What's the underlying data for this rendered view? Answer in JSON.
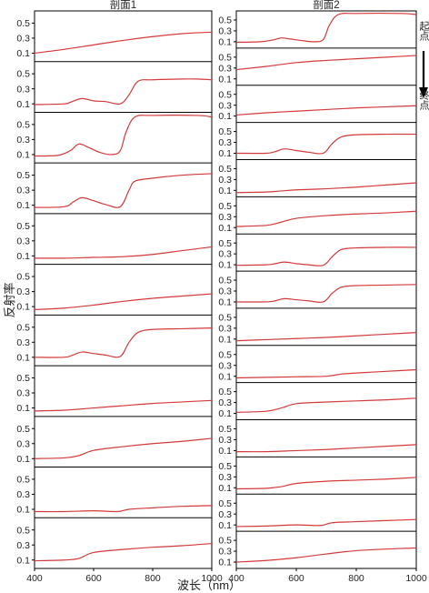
{
  "chart_data": {
    "type": "line",
    "xlabel": "波长（nm）",
    "ylabel": "反射率",
    "xlim": [
      400,
      1000
    ],
    "x_ticks": [
      400,
      600,
      800,
      1000
    ],
    "line_color": "#d23a3a",
    "side_labels": {
      "start": "起点",
      "end": "终点"
    },
    "panels": [
      {
        "title": "剖面1",
        "y_ticks": [
          "0.5",
          "0.3",
          "0.1"
        ],
        "ylim": [
          0,
          0.65
        ],
        "series": [
          {
            "x": [
              400,
              500,
              600,
              700,
              800,
              900,
              1000
            ],
            "y": [
              0.1,
              0.15,
              0.21,
              0.27,
              0.32,
              0.36,
              0.38
            ]
          },
          {
            "x": [
              400,
              500,
              520,
              560,
              600,
              640,
              690,
              720,
              750,
              800,
              900,
              950,
              1000
            ],
            "y": [
              0.09,
              0.1,
              0.12,
              0.17,
              0.14,
              0.13,
              0.1,
              0.22,
              0.4,
              0.42,
              0.43,
              0.43,
              0.42
            ]
          },
          {
            "x": [
              400,
              480,
              520,
              550,
              580,
              620,
              660,
              690,
              710,
              740,
              800,
              950,
              1000
            ],
            "y": [
              0.08,
              0.09,
              0.15,
              0.24,
              0.2,
              0.13,
              0.1,
              0.15,
              0.4,
              0.6,
              0.62,
              0.62,
              0.6
            ]
          },
          {
            "x": [
              400,
              500,
              530,
              560,
              600,
              640,
              690,
              720,
              740,
              800,
              900,
              1000
            ],
            "y": [
              0.07,
              0.08,
              0.14,
              0.2,
              0.16,
              0.11,
              0.08,
              0.3,
              0.42,
              0.46,
              0.5,
              0.52
            ]
          },
          {
            "x": [
              400,
              500,
              600,
              700,
              800,
              900,
              1000
            ],
            "y": [
              0.07,
              0.07,
              0.08,
              0.09,
              0.12,
              0.17,
              0.22
            ]
          },
          {
            "x": [
              400,
              500,
              600,
              700,
              800,
              900,
              1000
            ],
            "y": [
              0.06,
              0.08,
              0.12,
              0.17,
              0.21,
              0.24,
              0.27
            ]
          },
          {
            "x": [
              400,
              500,
              530,
              560,
              600,
              640,
              690,
              720,
              750,
              800,
              900,
              1000
            ],
            "y": [
              0.1,
              0.1,
              0.13,
              0.17,
              0.15,
              0.13,
              0.11,
              0.3,
              0.43,
              0.47,
              0.48,
              0.49
            ]
          },
          {
            "x": [
              400,
              500,
              600,
              700,
              800,
              900,
              1000
            ],
            "y": [
              0.06,
              0.07,
              0.1,
              0.13,
              0.16,
              0.18,
              0.2
            ]
          },
          {
            "x": [
              400,
              500,
              550,
              600,
              700,
              800,
              900,
              1000
            ],
            "y": [
              0.1,
              0.11,
              0.14,
              0.21,
              0.26,
              0.3,
              0.33,
              0.37
            ]
          },
          {
            "x": [
              400,
              500,
              600,
              680,
              720,
              800,
              900,
              1000
            ],
            "y": [
              0.07,
              0.07,
              0.08,
              0.07,
              0.1,
              0.12,
              0.14,
              0.15
            ]
          },
          {
            "x": [
              400,
              500,
              550,
              600,
              700,
              800,
              900,
              1000
            ],
            "y": [
              0.09,
              0.1,
              0.12,
              0.2,
              0.24,
              0.27,
              0.29,
              0.32
            ]
          }
        ]
      },
      {
        "title": "剖面2",
        "y_ticks": [
          "0.5",
          "0.3",
          "0.1"
        ],
        "ylim": [
          0,
          0.65
        ],
        "series": [
          {
            "x": [
              400,
              480,
              520,
              550,
              580,
              620,
              660,
              690,
              710,
              740,
              800,
              950,
              1000
            ],
            "y": [
              0.09,
              0.1,
              0.13,
              0.17,
              0.15,
              0.12,
              0.1,
              0.14,
              0.4,
              0.6,
              0.62,
              0.62,
              0.6
            ]
          },
          {
            "x": [
              400,
              500,
              600,
              700,
              800,
              900,
              1000
            ],
            "y": [
              0.27,
              0.33,
              0.4,
              0.44,
              0.47,
              0.5,
              0.53
            ]
          },
          {
            "x": [
              400,
              500,
              600,
              700,
              800,
              900,
              1000
            ],
            "y": [
              0.12,
              0.16,
              0.19,
              0.22,
              0.25,
              0.27,
              0.29
            ]
          },
          {
            "x": [
              400,
              500,
              530,
              560,
              600,
              640,
              690,
              720,
              750,
              800,
              900,
              1000
            ],
            "y": [
              0.1,
              0.1,
              0.13,
              0.18,
              0.15,
              0.12,
              0.1,
              0.28,
              0.4,
              0.44,
              0.45,
              0.45
            ]
          },
          {
            "x": [
              400,
              500,
              550,
              600,
              700,
              800,
              900,
              1000
            ],
            "y": [
              0.06,
              0.07,
              0.09,
              0.11,
              0.13,
              0.16,
              0.2,
              0.24
            ]
          },
          {
            "x": [
              400,
              500,
              550,
              600,
              700,
              800,
              900,
              1000
            ],
            "y": [
              0.12,
              0.14,
              0.2,
              0.27,
              0.32,
              0.35,
              0.37,
              0.4
            ]
          },
          {
            "x": [
              400,
              500,
              530,
              560,
              600,
              640,
              690,
              720,
              750,
              800,
              900,
              1000
            ],
            "y": [
              0.09,
              0.1,
              0.12,
              0.15,
              0.12,
              0.1,
              0.09,
              0.25,
              0.38,
              0.41,
              0.42,
              0.42
            ]
          },
          {
            "x": [
              400,
              500,
              530,
              560,
              600,
              640,
              690,
              720,
              750,
              800,
              900,
              1000
            ],
            "y": [
              0.1,
              0.1,
              0.12,
              0.16,
              0.14,
              0.12,
              0.1,
              0.26,
              0.37,
              0.4,
              0.41,
              0.42
            ]
          },
          {
            "x": [
              400,
              500,
              600,
              700,
              800,
              900,
              1000
            ],
            "y": [
              0.07,
              0.09,
              0.11,
              0.13,
              0.16,
              0.19,
              0.22
            ]
          },
          {
            "x": [
              400,
              500,
              600,
              700,
              750,
              800,
              900,
              1000
            ],
            "y": [
              0.07,
              0.08,
              0.09,
              0.1,
              0.14,
              0.16,
              0.19,
              0.22
            ]
          },
          {
            "x": [
              400,
              500,
              550,
              600,
              700,
              800,
              900,
              1000
            ],
            "y": [
              0.12,
              0.14,
              0.2,
              0.28,
              0.31,
              0.33,
              0.35,
              0.38
            ]
          },
          {
            "x": [
              400,
              500,
              600,
              700,
              800,
              900,
              1000
            ],
            "y": [
              0.08,
              0.08,
              0.1,
              0.12,
              0.15,
              0.18,
              0.21
            ]
          },
          {
            "x": [
              400,
              500,
              550,
              600,
              700,
              800,
              900,
              1000
            ],
            "y": [
              0.08,
              0.09,
              0.12,
              0.18,
              0.22,
              0.24,
              0.26,
              0.29
            ]
          },
          {
            "x": [
              400,
              500,
              600,
              680,
              720,
              800,
              900,
              1000
            ],
            "y": [
              0.07,
              0.08,
              0.1,
              0.09,
              0.14,
              0.16,
              0.18,
              0.2
            ]
          },
          {
            "x": [
              400,
              500,
              600,
              700,
              800,
              900,
              1000
            ],
            "y": [
              0.1,
              0.13,
              0.18,
              0.25,
              0.31,
              0.34,
              0.36
            ]
          }
        ]
      }
    ]
  }
}
